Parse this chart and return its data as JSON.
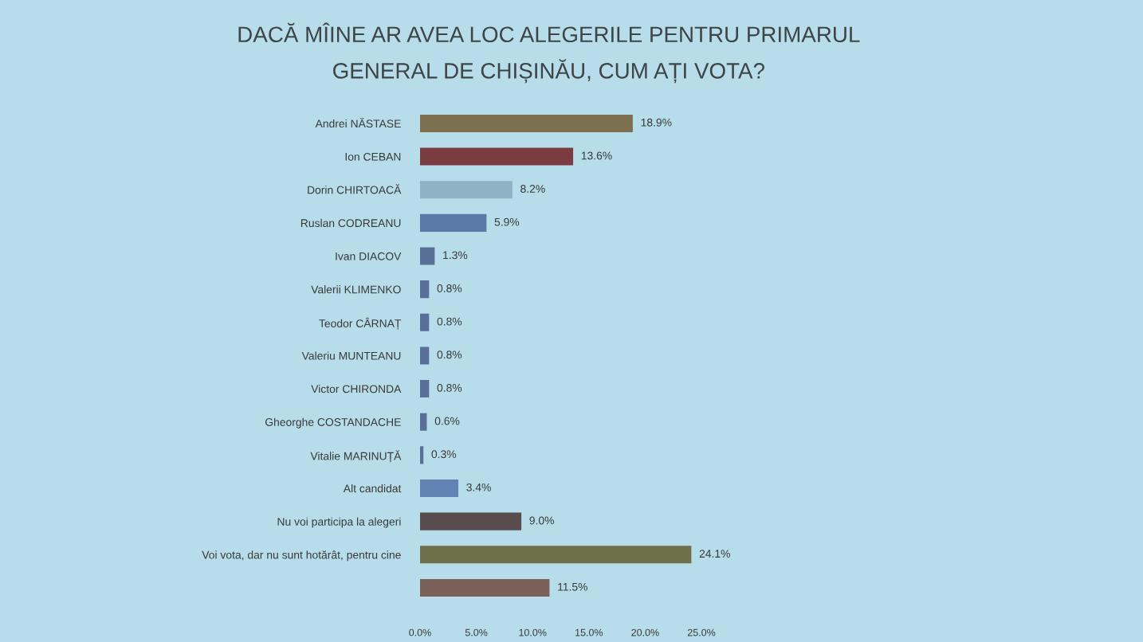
{
  "chart_data": {
    "type": "bar",
    "orientation": "horizontal",
    "title": "DACĂ MÎINE AR AVEA LOC ALEGERILE PENTRU PRIMARUL\nGENERAL DE CHIȘINĂU, CUM AȚI VOTA?",
    "categories": [
      "Andrei NĂSTASE",
      "Ion CEBAN",
      "Dorin CHIRTOACĂ",
      "Ruslan CODREANU",
      "Ivan DIACOV",
      "Valerii KLIMENKO",
      "Teodor CÂRNAȚ",
      "Valeriu MUNTEANU",
      "Victor CHIRONDA",
      "Gheorghe COSTANDACHE",
      "Vitalie MARINUȚĂ",
      "Alt candidat",
      "Nu voi participa la alegeri",
      "Voi vota, dar nu sunt hotărât, pentru cine",
      null
    ],
    "values": [
      18.9,
      13.6,
      8.2,
      5.9,
      1.3,
      0.8,
      0.8,
      0.8,
      0.8,
      0.6,
      0.3,
      3.4,
      9.0,
      24.1,
      11.5
    ],
    "value_labels": [
      "18.9%",
      "13.6%",
      "8.2%",
      "5.9%",
      "1.3%",
      "0.8%",
      "0.8%",
      "0.8%",
      "0.8%",
      "0.6%",
      "0.3%",
      "3.4%",
      "9.0%",
      "24.1%",
      "11.5%"
    ],
    "colors": [
      "#7d7050",
      "#7a3c40",
      "#8fb2c4",
      "#5b79a6",
      "#5a6f98",
      "#5a6f98",
      "#5a6f98",
      "#5a6f98",
      "#5a6f98",
      "#5a6f98",
      "#5a6f98",
      "#6183b3",
      "#594c4e",
      "#6e7049",
      "#7a6058"
    ],
    "xlim": [
      0,
      25
    ],
    "xticks": [
      {
        "value": 0,
        "label": "0.0%"
      },
      {
        "value": 5,
        "label": "5.0%"
      },
      {
        "value": 10,
        "label": "10.0%"
      },
      {
        "value": 15,
        "label": "15.0%"
      },
      {
        "value": 20,
        "label": "20.0%"
      },
      {
        "value": 25,
        "label": "25.0%"
      }
    ]
  }
}
